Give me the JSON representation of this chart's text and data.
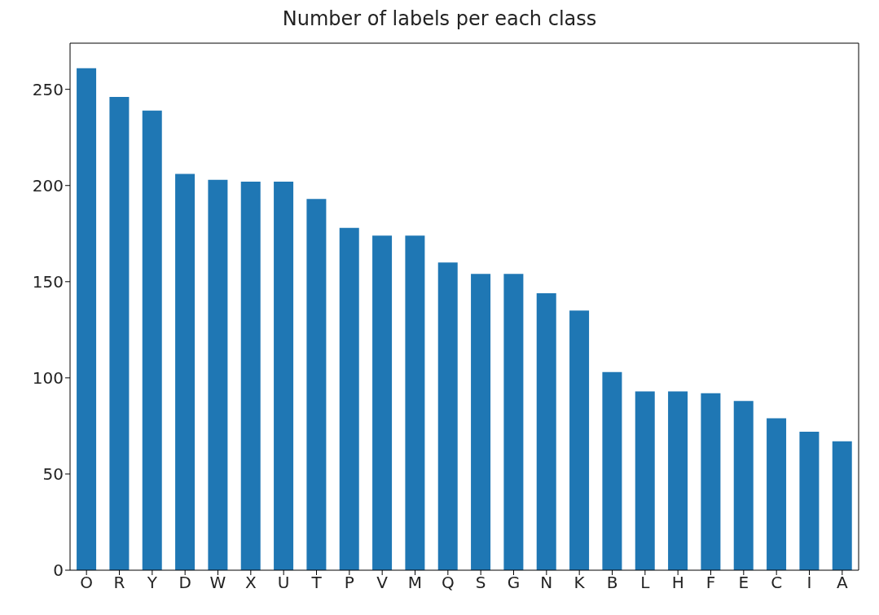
{
  "chart_data": {
    "type": "bar",
    "title": "Number of labels per each class",
    "categories": [
      "O",
      "R",
      "Y",
      "D",
      "W",
      "X",
      "U",
      "T",
      "P",
      "V",
      "M",
      "Q",
      "S",
      "G",
      "N",
      "K",
      "B",
      "L",
      "H",
      "F",
      "E",
      "C",
      "I",
      "A"
    ],
    "values": [
      261,
      246,
      239,
      206,
      203,
      202,
      202,
      193,
      178,
      174,
      174,
      160,
      154,
      154,
      144,
      135,
      103,
      93,
      93,
      92,
      88,
      79,
      72,
      67
    ],
    "color": "#1f77b4",
    "ylim": [
      0,
      274
    ],
    "yticks": [
      0,
      50,
      100,
      150,
      200,
      250
    ],
    "grid": false,
    "legend": false
  }
}
